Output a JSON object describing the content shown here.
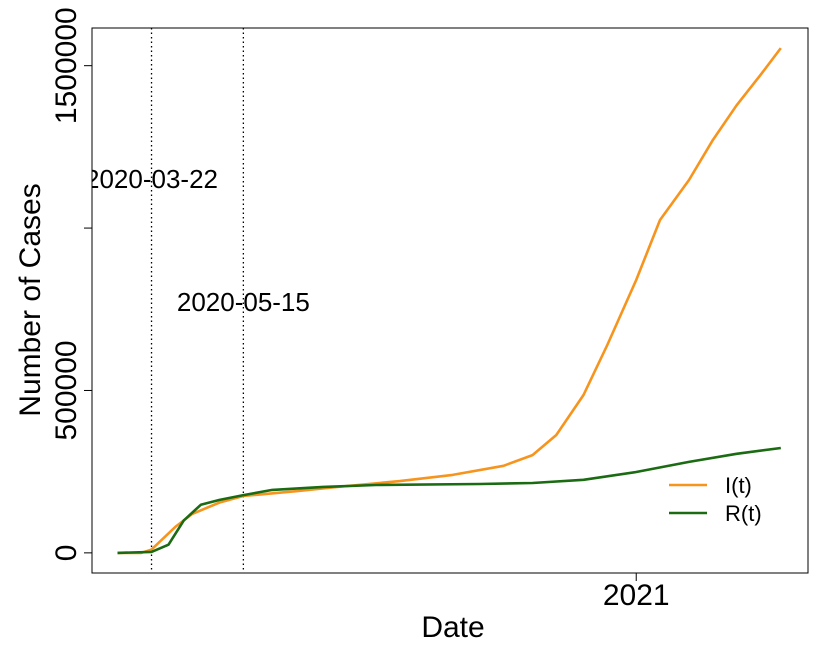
{
  "chart_data": {
    "type": "line",
    "x_label": "Date",
    "y_label": "Number of Cases",
    "xlim": [
      "2020-02-16",
      "2021-04-12"
    ],
    "ylim": [
      -62000,
      1616000
    ],
    "xticks": [
      {
        "value": "2021-01-01",
        "label": "2021"
      }
    ],
    "yticks": [
      0,
      500000,
      {
        "value": 1000000,
        "label": null
      },
      1500000
    ],
    "vlines": [
      "2020-03-22",
      "2020-05-15"
    ],
    "legend": "bottom-right",
    "series": [
      {
        "name": "I(t)",
        "color": "#f7941d",
        "x": [
          "2020-03-02",
          "2020-03-16",
          "2020-03-22",
          "2020-04-05",
          "2020-04-15",
          "2020-05-01",
          "2020-05-15",
          "2020-06-15",
          "2020-07-15",
          "2020-08-15",
          "2020-09-15",
          "2020-10-15",
          "2020-11-01",
          "2020-11-15",
          "2020-12-01",
          "2020-12-15",
          "2021-01-01",
          "2021-01-15",
          "2021-02-01",
          "2021-02-15",
          "2021-03-01",
          "2021-03-15",
          "2021-03-27"
        ],
        "values": [
          0,
          0,
          10000,
          80000,
          120000,
          155000,
          175000,
          190000,
          206000,
          221000,
          240000,
          268000,
          301000,
          363000,
          486000,
          640000,
          840000,
          1025000,
          1148000,
          1271000,
          1378000,
          1471000,
          1554000
        ]
      },
      {
        "name": "R(t)",
        "color": "#1a6b12",
        "x": [
          "2020-03-02",
          "2020-03-22",
          "2020-04-01",
          "2020-04-10",
          "2020-04-20",
          "2020-05-01",
          "2020-05-15",
          "2020-06-01",
          "2020-07-01",
          "2020-08-01",
          "2020-10-01",
          "2020-11-01",
          "2020-12-01",
          "2021-01-01",
          "2021-02-01",
          "2021-03-01",
          "2021-03-27"
        ],
        "values": [
          0,
          3000,
          25000,
          100000,
          148000,
          163000,
          178000,
          194000,
          203000,
          209000,
          212000,
          215000,
          225000,
          249000,
          280000,
          305000,
          323000
        ]
      }
    ]
  }
}
